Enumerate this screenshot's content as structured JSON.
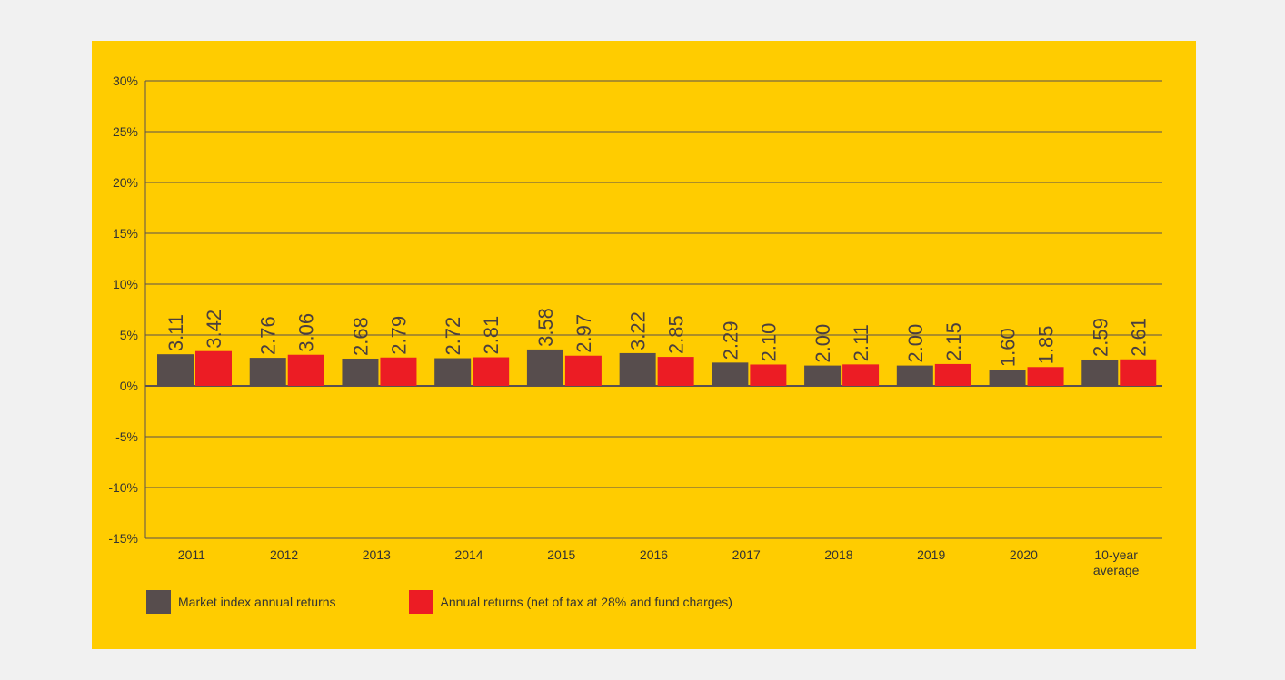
{
  "colors": {
    "page_bg": "#f1f1f1",
    "panel_bg": "#ffcc00",
    "grid": "#5a5050",
    "market": "#574d4d",
    "net": "#ec1c24",
    "label": "#4a3f3f"
  },
  "chart_data": {
    "type": "bar",
    "title": "",
    "xlabel": "",
    "ylabel": "",
    "ylim": [
      -15,
      30
    ],
    "yticks": [
      30,
      25,
      20,
      15,
      10,
      5,
      0,
      -5,
      -10,
      -15
    ],
    "ytick_labels": [
      "30%",
      "25%",
      "20%",
      "15%",
      "10%",
      "5%",
      "0%",
      "-5%",
      "-10%",
      "-15%"
    ],
    "grid": true,
    "legend_position": "bottom-left",
    "categories": [
      "2011",
      "2012",
      "2013",
      "2014",
      "2015",
      "2016",
      "2017",
      "2018",
      "2019",
      "2020",
      "10-year average"
    ],
    "category_lines": [
      [
        "2011"
      ],
      [
        "2012"
      ],
      [
        "2013"
      ],
      [
        "2014"
      ],
      [
        "2015"
      ],
      [
        "2016"
      ],
      [
        "2017"
      ],
      [
        "2018"
      ],
      [
        "2019"
      ],
      [
        "2020"
      ],
      [
        "10-year",
        "average"
      ]
    ],
    "series": [
      {
        "name": "Market index annual returns",
        "color": "#574d4d",
        "values": [
          3.11,
          2.76,
          2.68,
          2.72,
          3.58,
          3.22,
          2.29,
          2.0,
          2.0,
          1.6,
          2.59
        ],
        "labels": [
          "3.11",
          "2.76",
          "2.68",
          "2.72",
          "3.58",
          "3.22",
          "2.29",
          "2.00",
          "2.00",
          "1.60",
          "2.59"
        ]
      },
      {
        "name": "Annual returns (net of tax at 28% and fund charges)",
        "color": "#ec1c24",
        "values": [
          3.42,
          3.06,
          2.79,
          2.81,
          2.97,
          2.85,
          2.1,
          2.11,
          2.15,
          1.85,
          2.61
        ],
        "labels": [
          "3.42",
          "3.06",
          "2.79",
          "2.81",
          "2.97",
          "2.85",
          "2.10",
          "2.11",
          "2.15",
          "1.85",
          "2.61"
        ]
      }
    ]
  }
}
